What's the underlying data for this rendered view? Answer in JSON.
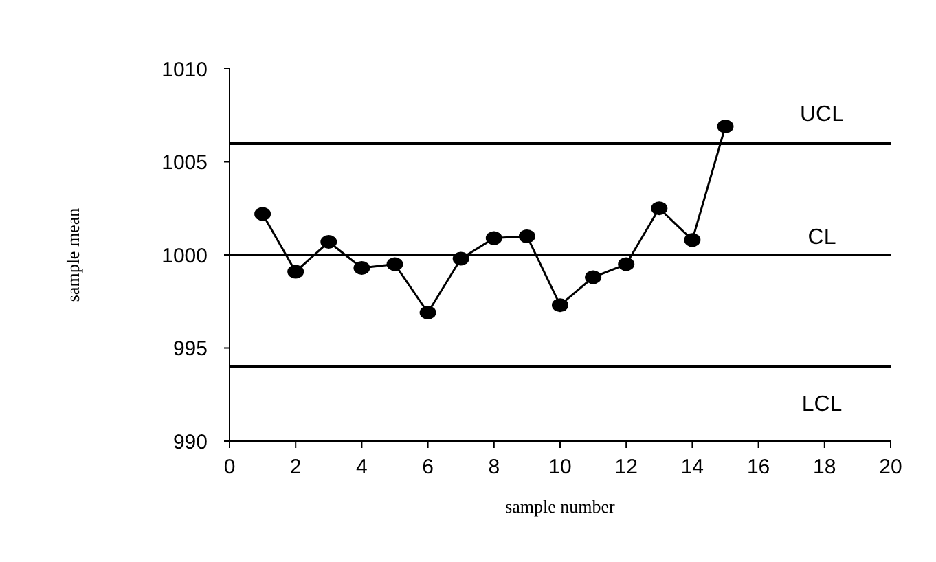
{
  "chart_data": {
    "type": "line",
    "xlabel": "sample number",
    "ylabel": "sample mean",
    "x": [
      1,
      2,
      3,
      4,
      5,
      6,
      7,
      8,
      9,
      10,
      11,
      12,
      13,
      14,
      15
    ],
    "series": [
      {
        "color": "#000000",
        "values": [
          1002.2,
          999.1,
          1000.7,
          999.3,
          999.5,
          996.9,
          999.8,
          1000.9,
          1001.0,
          997.3,
          998.8,
          999.5,
          1002.5,
          1000.8,
          1006.9
        ]
      }
    ],
    "xlim": [
      0,
      20
    ],
    "xticks": [
      0,
      2,
      4,
      6,
      8,
      10,
      12,
      14,
      16,
      18,
      20
    ],
    "ylim": [
      990,
      1010
    ],
    "yticks": [
      990,
      995,
      1000,
      1005,
      1010
    ],
    "ref_lines": [
      {
        "axis": "y",
        "value": 1006,
        "label": "UCL",
        "color": "#000000"
      },
      {
        "axis": "y",
        "value": 1000,
        "label": "CL",
        "color": "#000000"
      },
      {
        "axis": "y",
        "value": 994,
        "label": "LCL",
        "color": "#000000"
      }
    ],
    "grid": false,
    "legend": false,
    "marker": "circle",
    "line_style": "solid"
  }
}
